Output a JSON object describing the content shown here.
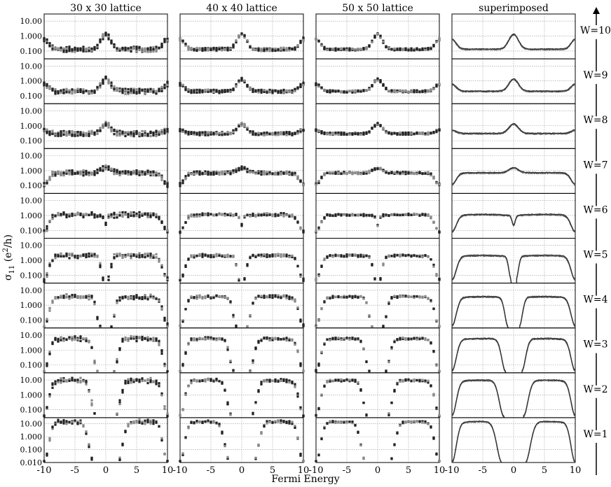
{
  "chart_data": {
    "type": "scatter",
    "panel_titles": [
      "30 x 30 lattice",
      "40 x 40 lattice",
      "50 x 50 lattice",
      "superimposed"
    ],
    "panel_types": [
      "scatter",
      "scatter",
      "scatter",
      "line"
    ],
    "xlabel": "Fermi Energy",
    "ylabel": "σ11 (e2/h)",
    "ylabel_main": "σ",
    "ylabel_sub": "11",
    "ylabel_open": " (e",
    "ylabel_sup": "2",
    "ylabel_close": "/h)",
    "x_ticks": [
      -10,
      -5,
      0,
      5,
      10
    ],
    "x_tick_labels": [
      "-10",
      "-5",
      "0",
      "5",
      "10"
    ],
    "xlim": [
      -10,
      10
    ],
    "y_scale": "log",
    "y_ticks": [
      0.1,
      1,
      10
    ],
    "y_tick_labels": [
      "0.100",
      "1.000",
      "10.00"
    ],
    "bottom_row_extra_tick": "0.010",
    "ylim": [
      0.03,
      30
    ],
    "bottom_row_ylim": [
      0.01,
      30
    ],
    "grid": true,
    "rows": [
      {
        "label": "W=10",
        "W": 10,
        "peak": 1.3,
        "base": 0.13,
        "edge_dip": 0.6,
        "center_dip": false,
        "gap": 0
      },
      {
        "label": "W=9",
        "W": 9,
        "peak": 1.3,
        "base": 0.2,
        "edge_dip": 0.6,
        "center_dip": false,
        "gap": 0
      },
      {
        "label": "W=8",
        "W": 8,
        "peak": 1.3,
        "base": 0.3,
        "edge_dip": 0.5,
        "center_dip": false,
        "gap": 0
      },
      {
        "label": "W=7",
        "W": 7,
        "peak": 1.5,
        "base": 0.7,
        "edge_dip": 0.12,
        "center_dip": false,
        "gap": 0
      },
      {
        "label": "W=6",
        "W": 6,
        "peak": 0.25,
        "base": 1.1,
        "edge_dip": 0.08,
        "center_dip": true,
        "gap": 0
      },
      {
        "label": "W=5",
        "W": 5,
        "peak": 0.06,
        "base": 2.0,
        "edge_dip": 0.05,
        "center_dip": true,
        "gap": 0.4
      },
      {
        "label": "W=4",
        "W": 4,
        "peak": 0.04,
        "base": 3.5,
        "edge_dip": 0.04,
        "center_dip": true,
        "gap": 0.9
      },
      {
        "label": "W=3",
        "W": 3,
        "peak": 0.04,
        "base": 5.5,
        "edge_dip": 0.04,
        "center_dip": true,
        "gap": 1.3
      },
      {
        "label": "W=2",
        "W": 2,
        "peak": 0.04,
        "base": 9.0,
        "edge_dip": 0.04,
        "center_dip": true,
        "gap": 1.6
      },
      {
        "label": "W=1",
        "W": 1,
        "peak": 0.01,
        "base": 14.0,
        "edge_dip": 0.01,
        "center_dip": true,
        "gap": 1.9
      }
    ],
    "series_note_colors": {
      "dark": "#222222",
      "light": "#8a8a8a"
    }
  }
}
